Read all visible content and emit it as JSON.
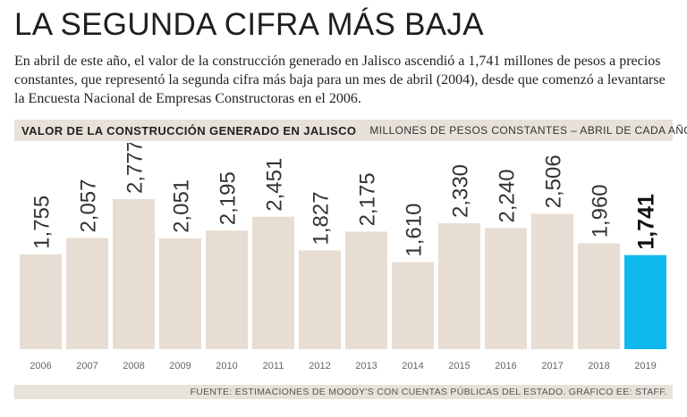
{
  "title": "LA SEGUNDA CIFRA MÁS BAJA",
  "subtitle": "En abril de este año, el valor de la construcción generado en Jalisco ascendió a 1,741 millones de pesos a precios constantes, que representó la segunda cifra más baja para un mes de abril (2004), desde que comenzó a levantarse la Encuesta Nacional de Empresas Constructoras en el 2006.",
  "chart_header": {
    "main": "VALOR DE LA CONSTRUCCIÓN GENERADO EN JALISCO",
    "unit": "MILLONES DE PESOS CONSTANTES – ABRIL DE CADA AÑO"
  },
  "source": "FUENTE: ESTIMACIONES DE MOODY'S CON CUENTAS PÚBLICAS DEL ESTADO. GRÁFICO EE: STAFF.",
  "colors": {
    "bar": "#e7ddd3",
    "highlight": "#0db9ee",
    "header_bg": "#e7e1d9"
  },
  "chart_data": {
    "type": "bar",
    "title": "VALOR DE LA CONSTRUCCIÓN GENERADO EN JALISCO",
    "ylabel": "Millones de pesos constantes",
    "xlabel": "",
    "categories": [
      "2006",
      "2007",
      "2008",
      "2009",
      "2010",
      "2011",
      "2012",
      "2013",
      "2014",
      "2015",
      "2016",
      "2017",
      "2018",
      "2019"
    ],
    "values": [
      1755,
      2057,
      2777,
      2051,
      2195,
      2451,
      1827,
      2175,
      1610,
      2330,
      2240,
      2506,
      1960,
      1741
    ],
    "labels": [
      "1,755",
      "2,057",
      "2,777",
      "2,051",
      "2,195",
      "2,451",
      "1,827",
      "2,175",
      "1,610",
      "2,330",
      "2,240",
      "2,506",
      "1,960",
      "1,741"
    ],
    "highlight_index": 13,
    "ylim": [
      0,
      2900
    ],
    "grid": false
  }
}
